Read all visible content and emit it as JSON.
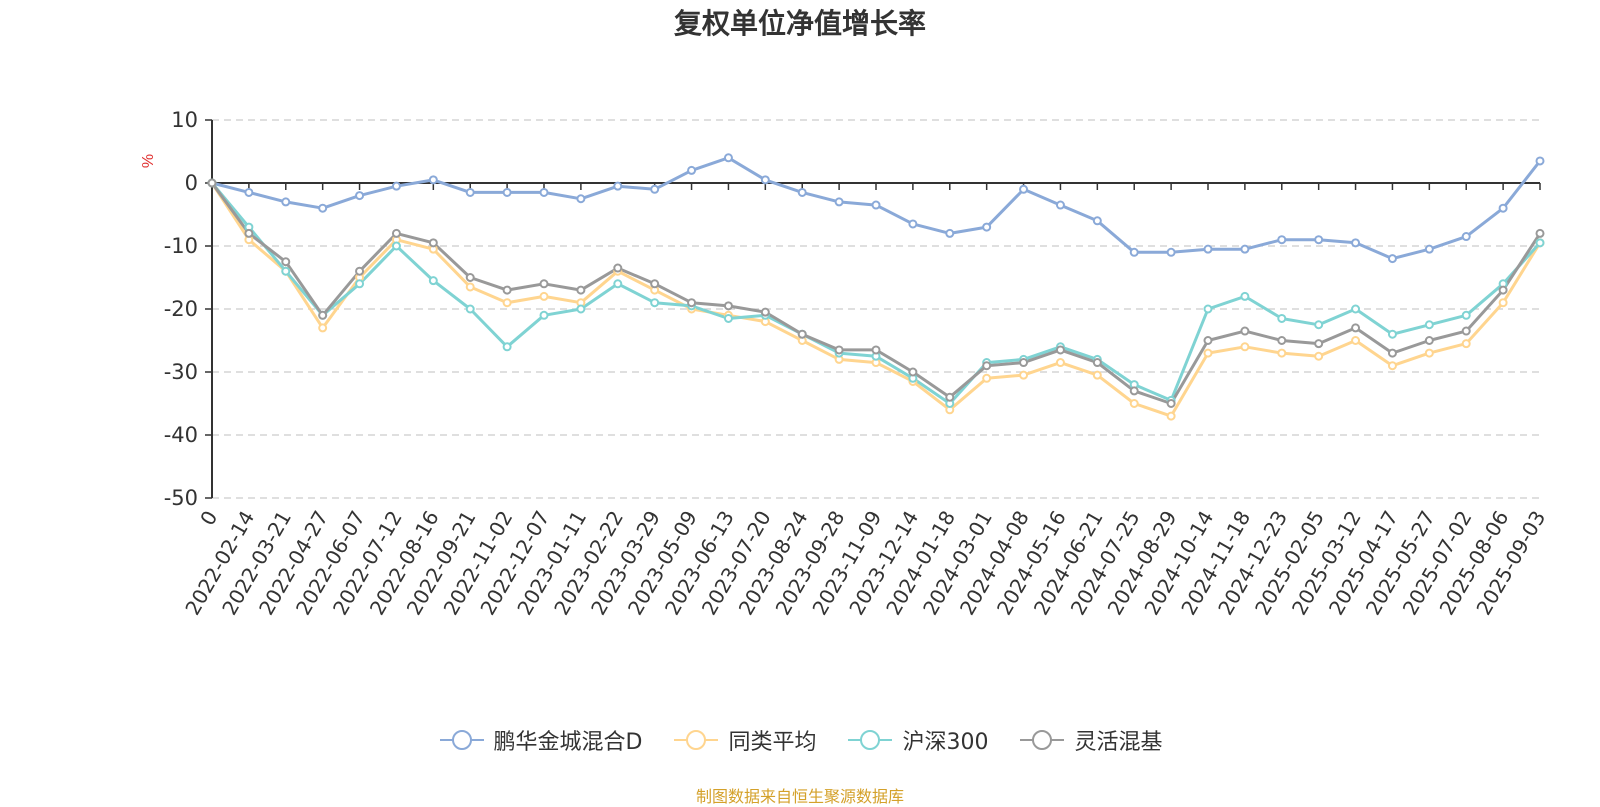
{
  "chart_data": {
    "type": "line",
    "title": "复权单位净值增长率",
    "ylabel": "%",
    "ylim": [
      -50,
      10
    ],
    "yticks": [
      "10",
      "0",
      "-10",
      "-20",
      "-30",
      "-40",
      "-50"
    ],
    "grid": true,
    "legend_position": "bottom",
    "categories": [
      "0",
      "2022-02-14",
      "2022-03-21",
      "2022-04-27",
      "2022-06-07",
      "2022-07-12",
      "2022-08-16",
      "2022-09-21",
      "2022-11-02",
      "2022-12-07",
      "2023-01-11",
      "2023-02-22",
      "2023-03-29",
      "2023-05-09",
      "2023-06-13",
      "2023-07-20",
      "2023-08-24",
      "2023-09-28",
      "2023-11-09",
      "2023-12-14",
      "2024-01-18",
      "2024-03-01",
      "2024-04-08",
      "2024-05-16",
      "2024-06-21",
      "2024-07-25",
      "2024-08-29",
      "2024-10-14",
      "2024-11-18",
      "2024-12-23",
      "2025-02-05",
      "2025-03-12",
      "2025-04-17",
      "2025-05-27",
      "2025-07-02",
      "2025-08-06",
      "2025-09-03"
    ],
    "series": [
      {
        "name": "鹏华金城混合D",
        "color": "#8AA9D8",
        "values": [
          0,
          -1.5,
          -3.0,
          -4.0,
          -2.0,
          -0.5,
          0.5,
          -1.5,
          -1.5,
          -1.5,
          -2.5,
          -0.5,
          -1.0,
          2.0,
          4.0,
          0.5,
          -1.5,
          -3.0,
          -3.5,
          -6.5,
          -8.0,
          -7.0,
          -1.0,
          -3.5,
          -6.0,
          -11.0,
          -11.0,
          -10.5,
          -10.5,
          -9.0,
          -9.0,
          -9.5,
          -12.0,
          -10.5,
          -8.5,
          -4.0,
          3.5
        ]
      },
      {
        "name": "同类平均",
        "color": "#FFD58F",
        "values": [
          0,
          -9.0,
          -14.0,
          -23.0,
          -15.0,
          -9.0,
          -10.5,
          -16.5,
          -19.0,
          -18.0,
          -19.0,
          -14.0,
          -17.0,
          -20.0,
          -21.0,
          -22.0,
          -25.0,
          -28.0,
          -28.5,
          -31.5,
          -36.0,
          -31.0,
          -30.5,
          -28.5,
          -30.5,
          -35.0,
          -37.0,
          -27.0,
          -26.0,
          -27.0,
          -27.5,
          -25.0,
          -29.0,
          -27.0,
          -25.5,
          -19.0,
          -9.5
        ]
      },
      {
        "name": "沪深300",
        "color": "#7FD3D3",
        "values": [
          0,
          -7.0,
          -14.0,
          -21.0,
          -16.0,
          -10.0,
          -15.5,
          -20.0,
          -26.0,
          -21.0,
          -20.0,
          -16.0,
          -19.0,
          -19.5,
          -21.5,
          -21.0,
          -24.0,
          -27.0,
          -27.5,
          -31.0,
          -35.0,
          -28.5,
          -28.0,
          -26.0,
          -28.0,
          -32.0,
          -34.5,
          -20.0,
          -18.0,
          -21.5,
          -22.5,
          -20.0,
          -24.0,
          -22.5,
          -21.0,
          -16.0,
          -9.5
        ]
      },
      {
        "name": "灵活混基",
        "color": "#999999",
        "values": [
          0,
          -8.0,
          -12.5,
          -21.0,
          -14.0,
          -8.0,
          -9.5,
          -15.0,
          -17.0,
          -16.0,
          -17.0,
          -13.5,
          -16.0,
          -19.0,
          -19.5,
          -20.5,
          -24.0,
          -26.5,
          -26.5,
          -30.0,
          -34.0,
          -29.0,
          -28.5,
          -26.5,
          -28.5,
          -33.0,
          -35.0,
          -25.0,
          -23.5,
          -25.0,
          -25.5,
          -23.0,
          -27.0,
          -25.0,
          -23.5,
          -17.0,
          -8.0
        ]
      }
    ]
  },
  "footer": {
    "source_text": "制图数据来自恒生聚源数据库",
    "source_color": "#D4A12A"
  }
}
